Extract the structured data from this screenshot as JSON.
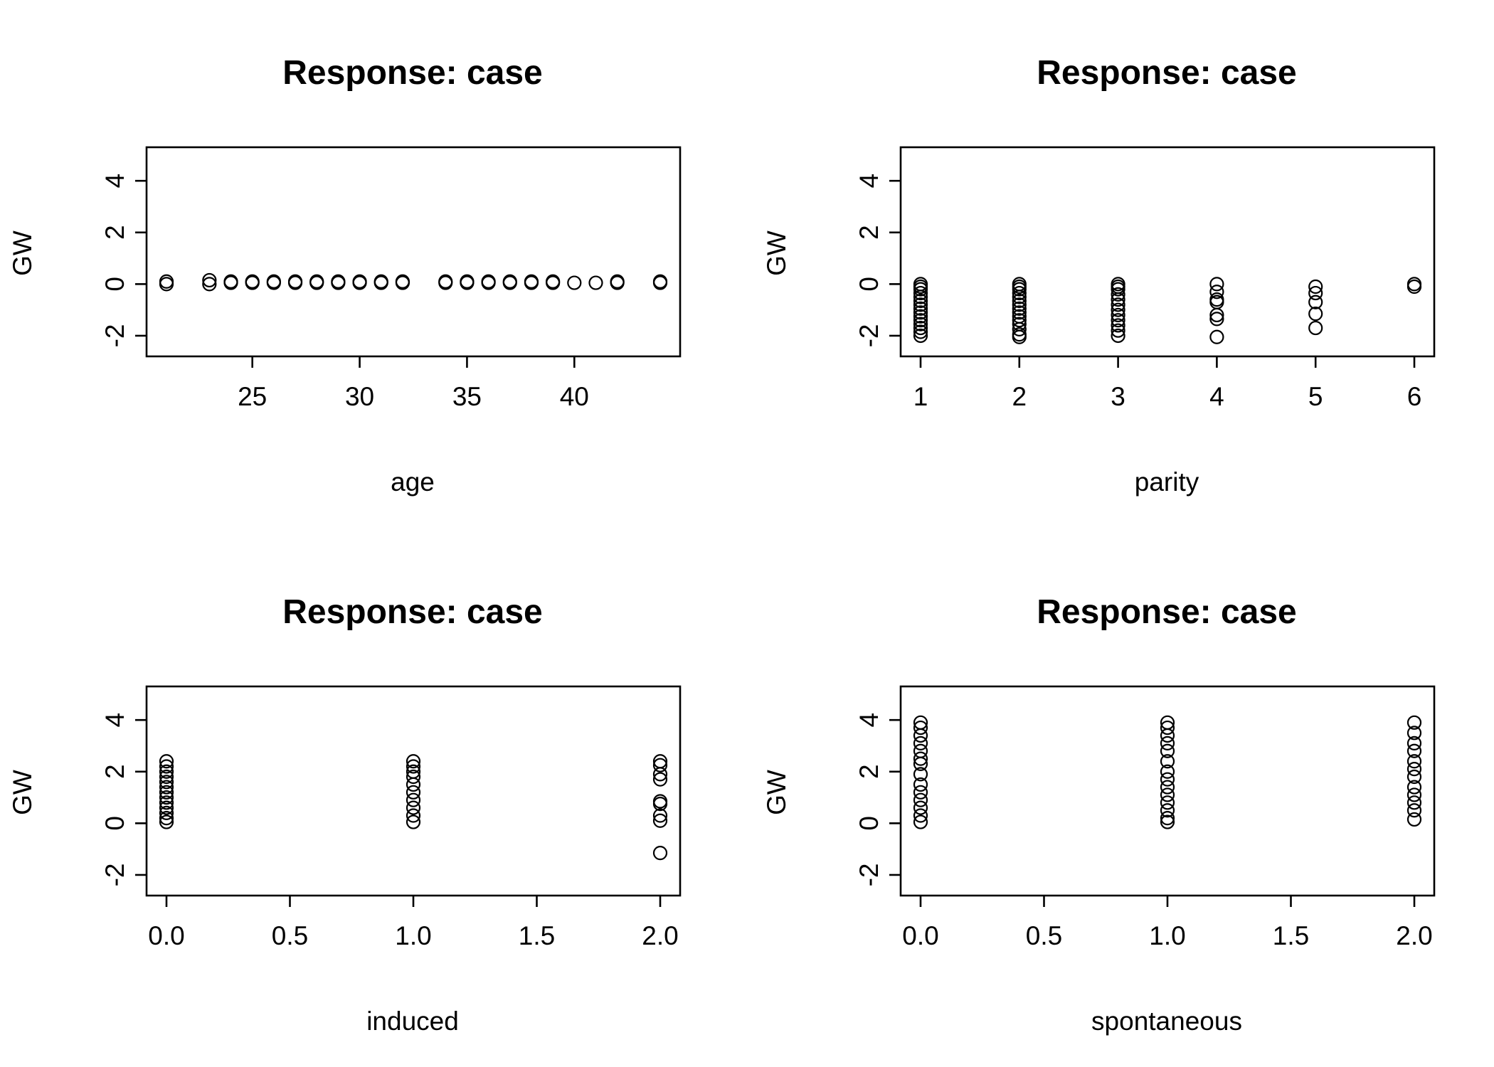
{
  "chart_data": [
    {
      "type": "scatter",
      "title": "Response: case",
      "xlabel": "age",
      "ylabel": "GW",
      "xlim": [
        21,
        44
      ],
      "ylim": [
        -2.8,
        5.3
      ],
      "xticks": [
        25,
        30,
        35,
        40
      ],
      "yticks": [
        -2,
        0,
        2,
        4
      ],
      "points": [
        [
          21,
          0.1
        ],
        [
          21,
          0.0
        ],
        [
          23,
          0.15
        ],
        [
          23,
          0.0
        ],
        [
          24,
          0.1
        ],
        [
          24,
          0.05
        ],
        [
          25,
          0.1
        ],
        [
          25,
          0.05
        ],
        [
          26,
          0.1
        ],
        [
          26,
          0.05
        ],
        [
          27,
          0.1
        ],
        [
          27,
          0.05
        ],
        [
          28,
          0.1
        ],
        [
          28,
          0.05
        ],
        [
          29,
          0.1
        ],
        [
          29,
          0.05
        ],
        [
          30,
          0.1
        ],
        [
          30,
          0.05
        ],
        [
          31,
          0.1
        ],
        [
          31,
          0.05
        ],
        [
          32,
          0.1
        ],
        [
          32,
          0.05
        ],
        [
          34,
          0.1
        ],
        [
          34,
          0.05
        ],
        [
          35,
          0.1
        ],
        [
          35,
          0.05
        ],
        [
          36,
          0.1
        ],
        [
          36,
          0.05
        ],
        [
          37,
          0.1
        ],
        [
          37,
          0.05
        ],
        [
          38,
          0.1
        ],
        [
          38,
          0.05
        ],
        [
          39,
          0.1
        ],
        [
          39,
          0.05
        ],
        [
          40,
          0.05
        ],
        [
          41,
          0.05
        ],
        [
          42,
          0.1
        ],
        [
          42,
          0.05
        ],
        [
          44,
          0.1
        ],
        [
          44,
          0.05
        ]
      ]
    },
    {
      "type": "scatter",
      "title": "Response: case",
      "xlabel": "parity",
      "ylabel": "GW",
      "xlim": [
        1,
        6
      ],
      "ylim": [
        -2.8,
        5.3
      ],
      "xticks": [
        1,
        2,
        3,
        4,
        5,
        6
      ],
      "yticks": [
        -2,
        0,
        2,
        4
      ],
      "points": [
        [
          1,
          0.0
        ],
        [
          1,
          -0.1
        ],
        [
          1,
          -0.2
        ],
        [
          1,
          -0.35
        ],
        [
          1,
          -0.5
        ],
        [
          1,
          -0.65
        ],
        [
          1,
          -0.8
        ],
        [
          1,
          -0.95
        ],
        [
          1,
          -1.1
        ],
        [
          1,
          -1.25
        ],
        [
          1,
          -1.4
        ],
        [
          1,
          -1.55
        ],
        [
          1,
          -1.7
        ],
        [
          1,
          -1.85
        ],
        [
          1,
          -2.0
        ],
        [
          2,
          0.0
        ],
        [
          2,
          -0.1
        ],
        [
          2,
          -0.2
        ],
        [
          2,
          -0.35
        ],
        [
          2,
          -0.5
        ],
        [
          2,
          -0.65
        ],
        [
          2,
          -0.8
        ],
        [
          2,
          -0.95
        ],
        [
          2,
          -1.1
        ],
        [
          2,
          -1.25
        ],
        [
          2,
          -1.4
        ],
        [
          2,
          -1.55
        ],
        [
          2,
          -1.75
        ],
        [
          2,
          -1.95
        ],
        [
          2,
          -2.05
        ],
        [
          3,
          0.0
        ],
        [
          3,
          -0.1
        ],
        [
          3,
          -0.2
        ],
        [
          3,
          -0.4
        ],
        [
          3,
          -0.6
        ],
        [
          3,
          -0.8
        ],
        [
          3,
          -1.0
        ],
        [
          3,
          -1.2
        ],
        [
          3,
          -1.4
        ],
        [
          3,
          -1.6
        ],
        [
          3,
          -1.8
        ],
        [
          3,
          -2.0
        ],
        [
          4,
          0.0
        ],
        [
          4,
          -0.3
        ],
        [
          4,
          -0.6
        ],
        [
          4,
          -0.7
        ],
        [
          4,
          -1.2
        ],
        [
          4,
          -1.35
        ],
        [
          4,
          -2.05
        ],
        [
          5,
          -0.1
        ],
        [
          5,
          -0.35
        ],
        [
          5,
          -0.7
        ],
        [
          5,
          -1.15
        ],
        [
          5,
          -1.7
        ],
        [
          6,
          0.0
        ],
        [
          6,
          -0.1
        ]
      ]
    },
    {
      "type": "scatter",
      "title": "Response: case",
      "xlabel": "induced",
      "ylabel": "GW",
      "xlim": [
        0,
        2
      ],
      "ylim": [
        -2.8,
        5.3
      ],
      "xticks": [
        "0.0",
        "0.5",
        "1.0",
        "1.5",
        "2.0"
      ],
      "yticks": [
        -2,
        0,
        2,
        4
      ],
      "points": [
        [
          0,
          2.4
        ],
        [
          0,
          2.2
        ],
        [
          0,
          2.0
        ],
        [
          0,
          1.8
        ],
        [
          0,
          1.6
        ],
        [
          0,
          1.4
        ],
        [
          0,
          1.2
        ],
        [
          0,
          1.0
        ],
        [
          0,
          0.8
        ],
        [
          0,
          0.6
        ],
        [
          0,
          0.4
        ],
        [
          0,
          0.2
        ],
        [
          0,
          0.05
        ],
        [
          1,
          2.4
        ],
        [
          1,
          2.2
        ],
        [
          1,
          2.0
        ],
        [
          1,
          1.8
        ],
        [
          1,
          1.5
        ],
        [
          1,
          1.2
        ],
        [
          1,
          0.9
        ],
        [
          1,
          0.6
        ],
        [
          1,
          0.3
        ],
        [
          1,
          0.05
        ],
        [
          2,
          2.4
        ],
        [
          2,
          2.25
        ],
        [
          2,
          1.9
        ],
        [
          2,
          1.7
        ],
        [
          2,
          0.85
        ],
        [
          2,
          0.75
        ],
        [
          2,
          0.3
        ],
        [
          2,
          0.1
        ],
        [
          2,
          -1.15
        ]
      ]
    },
    {
      "type": "scatter",
      "title": "Response: case",
      "xlabel": "spontaneous",
      "ylabel": "GW",
      "xlim": [
        0,
        2
      ],
      "ylim": [
        -2.8,
        5.3
      ],
      "xticks": [
        "0.0",
        "0.5",
        "1.0",
        "1.5",
        "2.0"
      ],
      "yticks": [
        -2,
        0,
        2,
        4
      ],
      "points": [
        [
          0,
          3.9
        ],
        [
          0,
          3.7
        ],
        [
          0,
          3.4
        ],
        [
          0,
          3.1
        ],
        [
          0,
          2.8
        ],
        [
          0,
          2.5
        ],
        [
          0,
          2.3
        ],
        [
          0,
          1.9
        ],
        [
          0,
          1.5
        ],
        [
          0,
          1.2
        ],
        [
          0,
          0.9
        ],
        [
          0,
          0.6
        ],
        [
          0,
          0.3
        ],
        [
          0,
          0.05
        ],
        [
          1,
          3.9
        ],
        [
          1,
          3.7
        ],
        [
          1,
          3.4
        ],
        [
          1,
          3.1
        ],
        [
          1,
          2.8
        ],
        [
          1,
          2.4
        ],
        [
          1,
          2.0
        ],
        [
          1,
          1.7
        ],
        [
          1,
          1.4
        ],
        [
          1,
          1.1
        ],
        [
          1,
          0.8
        ],
        [
          1,
          0.5
        ],
        [
          1,
          0.2
        ],
        [
          1,
          0.05
        ],
        [
          2,
          3.9
        ],
        [
          2,
          3.5
        ],
        [
          2,
          3.1
        ],
        [
          2,
          2.8
        ],
        [
          2,
          2.4
        ],
        [
          2,
          2.1
        ],
        [
          2,
          1.8
        ],
        [
          2,
          1.4
        ],
        [
          2,
          1.1
        ],
        [
          2,
          0.8
        ],
        [
          2,
          0.5
        ],
        [
          2,
          0.15
        ]
      ]
    }
  ]
}
